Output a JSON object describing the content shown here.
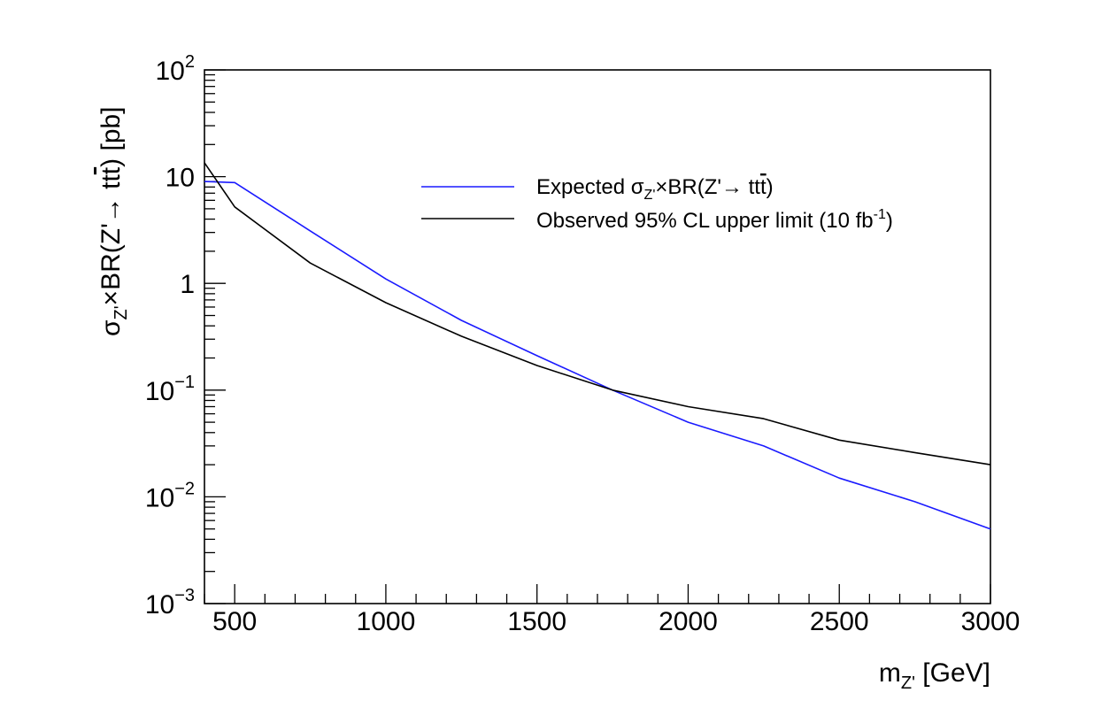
{
  "chart_data": {
    "type": "line",
    "xlabel": "m_Z' [GeV]",
    "ylabel": "σ_Z'×BR(Z'→ tt̄) [pb]",
    "xlim": [
      400,
      3000
    ],
    "ylim": [
      0.001,
      100
    ],
    "yscale": "log",
    "grid": false,
    "legend_position": "top-right",
    "x_ticks": [
      500,
      1000,
      1500,
      2000,
      2500,
      3000
    ],
    "x_tick_labels": [
      "500",
      "1000",
      "1500",
      "2000",
      "2500",
      "3000"
    ],
    "y_ticks": [
      0.001,
      0.01,
      0.1,
      1,
      10,
      100
    ],
    "y_tick_labels": [
      {
        "base": "10",
        "exp": "−3"
      },
      {
        "base": "10",
        "exp": "−2"
      },
      {
        "base": "10",
        "exp": "−1"
      },
      {
        "base": "1",
        "exp": ""
      },
      {
        "base": "10",
        "exp": ""
      },
      {
        "base": "10",
        "exp": "2"
      }
    ],
    "series": [
      {
        "name": "Expected σ_Z'×BR(Z'→ tt̄)",
        "color": "#1a1aff",
        "x": [
          400,
          500,
          750,
          1000,
          1250,
          1500,
          1750,
          2000,
          2250,
          2500,
          2750,
          3000
        ],
        "y": [
          9.0,
          8.8,
          3.1,
          1.1,
          0.45,
          0.21,
          0.1,
          0.05,
          0.03,
          0.015,
          0.009,
          0.005
        ]
      },
      {
        "name": "Observed 95% CL upper limit (10 fb⁻¹)",
        "color": "#000000",
        "x": [
          400,
          500,
          750,
          1000,
          1250,
          1500,
          1750,
          2000,
          2250,
          2500,
          2750,
          3000
        ],
        "y": [
          13.5,
          5.2,
          1.55,
          0.66,
          0.32,
          0.17,
          0.1,
          0.07,
          0.054,
          0.034,
          0.026,
          0.02
        ]
      }
    ]
  },
  "legend": [
    {
      "main": "Expected σ",
      "sub": "Z'",
      "rest": "×BR(Z'→ tt",
      "bar_char": "t",
      "tail": ")"
    },
    {
      "main": "Observed 95% CL upper limit (10 fb",
      "sup": "-1",
      "tail": ")"
    }
  ],
  "axis_titles": {
    "x": {
      "main": "m",
      "sub": "Z'",
      "rest": " [GeV]"
    },
    "y": {
      "main": "σ",
      "sub": "Z'",
      "rest": "×BR(Z'→ tt",
      "bar_char": "t",
      "tail": ") [pb]"
    }
  }
}
